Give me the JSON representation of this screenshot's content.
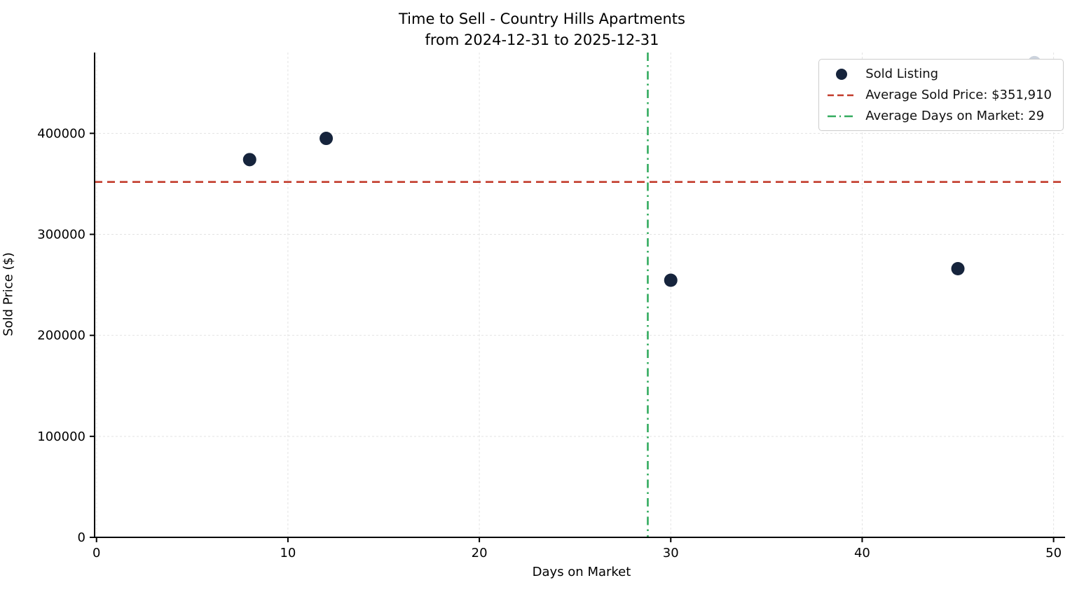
{
  "chart_data": {
    "type": "scatter",
    "title": "Time to Sell - Country Hills Apartments",
    "subtitle": "from 2024-12-31 to 2025-12-31",
    "xlabel": "Days on Market",
    "ylabel": "Sold Price ($)",
    "xlim": [
      -0.1,
      50.6
    ],
    "ylim": [
      0,
      480000
    ],
    "xticks": [
      0,
      10,
      20,
      30,
      40,
      50
    ],
    "yticks": [
      0,
      100000,
      200000,
      300000,
      400000
    ],
    "grid": true,
    "colors": {
      "point": "#16243c",
      "point_light": "#ccd3dd",
      "avg_price": "#c23b2b",
      "avg_days": "#33ab5f",
      "grid": "#e3e3e3",
      "spine": "#000000"
    },
    "points": [
      {
        "x": 8,
        "y": 374000,
        "color": "#16243c"
      },
      {
        "x": 12,
        "y": 395000,
        "color": "#16243c"
      },
      {
        "x": 30,
        "y": 254550,
        "color": "#16243c"
      },
      {
        "x": 45,
        "y": 266000,
        "color": "#16243c"
      },
      {
        "x": 49,
        "y": 470000,
        "color": "#ccd3dd"
      }
    ],
    "avg_sold_price": {
      "value": 351910,
      "label": "Average Sold Price: $351,910"
    },
    "avg_days_on_market": {
      "value": 28.8,
      "label": "Average Days on Market: 29"
    },
    "legend": {
      "position": "upper right",
      "entries": [
        {
          "type": "marker",
          "label": "Sold Listing",
          "color": "#16243c"
        },
        {
          "type": "dashed-line",
          "label": "Average Sold Price: $351,910",
          "color": "#c23b2b"
        },
        {
          "type": "dashdot-line",
          "label": "Average Days on Market: 29",
          "color": "#33ab5f"
        }
      ]
    }
  }
}
